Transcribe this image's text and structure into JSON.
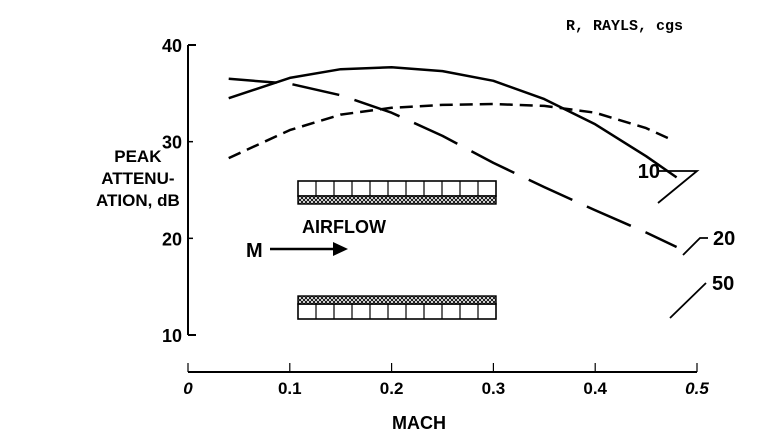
{
  "chart_data": {
    "type": "line",
    "ylabel": [
      "PEAK",
      "ATTENU-",
      "ATION, dB"
    ],
    "xlabel": "MACH",
    "legend_title": "R, RAYLS, cgs",
    "xlim": [
      0,
      0.5
    ],
    "ylim": [
      10,
      40
    ],
    "x_ticks": [
      "0",
      "0.1",
      "0.2",
      "0.3",
      "0.4",
      "0.5"
    ],
    "y_ticks": [
      "10",
      "20",
      "30",
      "40"
    ],
    "series": [
      {
        "name": "10",
        "style": "dashed",
        "x": [
          0.04,
          0.1,
          0.15,
          0.2,
          0.25,
          0.3,
          0.35,
          0.4,
          0.45,
          0.475
        ],
        "y": [
          28.3,
          31.2,
          32.8,
          33.5,
          33.8,
          33.9,
          33.7,
          33.0,
          31.4,
          30.2
        ]
      },
      {
        "name": "20",
        "style": "solid",
        "x": [
          0.04,
          0.1,
          0.15,
          0.2,
          0.25,
          0.3,
          0.35,
          0.4,
          0.45,
          0.48
        ],
        "y": [
          34.5,
          36.6,
          37.5,
          37.7,
          37.3,
          36.3,
          34.4,
          31.8,
          28.5,
          26.3
        ]
      },
      {
        "name": "50",
        "style": "long-dash",
        "x": [
          0.04,
          0.1,
          0.15,
          0.2,
          0.25,
          0.3,
          0.35,
          0.4,
          0.45,
          0.48
        ],
        "y": [
          36.5,
          36.0,
          34.8,
          33.0,
          30.6,
          27.8,
          25.3,
          22.9,
          20.6,
          19.1
        ]
      }
    ],
    "annotations": {
      "airflow": "AIRFLOW",
      "mach_symbol": "M"
    },
    "colors": {
      "ink": "#000000",
      "background": "#ffffff"
    }
  }
}
